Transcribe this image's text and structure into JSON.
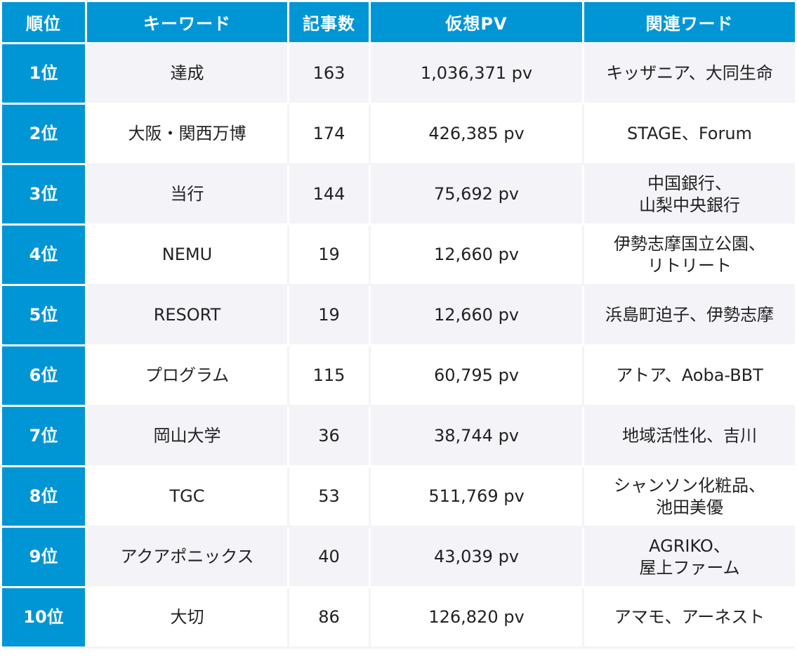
{
  "headers": {
    "rank": "順位",
    "keyword": "キーワード",
    "article_count": "記事数",
    "virtual_pv": "仮想PV",
    "related_words": "関連ワード"
  },
  "rows": [
    {
      "rank": "1位",
      "keyword": "達成",
      "article_count": "163",
      "virtual_pv": "1,036,371 pv",
      "related": [
        "キッザニア、大同生命"
      ]
    },
    {
      "rank": "2位",
      "keyword": "大阪・関西万博",
      "article_count": "174",
      "virtual_pv": "426,385 pv",
      "related": [
        "STAGE、Forum"
      ]
    },
    {
      "rank": "3位",
      "keyword": "当行",
      "article_count": "144",
      "virtual_pv": "75,692 pv",
      "related": [
        "中国銀行、",
        "山梨中央銀行"
      ]
    },
    {
      "rank": "4位",
      "keyword": "NEMU",
      "article_count": "19",
      "virtual_pv": "12,660 pv",
      "related": [
        "伊勢志摩国立公園、",
        "リトリート"
      ]
    },
    {
      "rank": "5位",
      "keyword": "RESORT",
      "article_count": "19",
      "virtual_pv": "12,660 pv",
      "related": [
        "浜島町迫子、伊勢志摩"
      ]
    },
    {
      "rank": "6位",
      "keyword": "プログラム",
      "article_count": "115",
      "virtual_pv": "60,795 pv",
      "related": [
        "アトア、Aoba-BBT"
      ]
    },
    {
      "rank": "7位",
      "keyword": "岡山大学",
      "article_count": "36",
      "virtual_pv": "38,744 pv",
      "related": [
        "地域活性化、吉川"
      ]
    },
    {
      "rank": "8位",
      "keyword": "TGC",
      "article_count": "53",
      "virtual_pv": "511,769 pv",
      "related": [
        "シャンソン化粧品、",
        "池田美優"
      ]
    },
    {
      "rank": "9位",
      "keyword": "アクアポニックス",
      "article_count": "40",
      "virtual_pv": "43,039 pv",
      "related": [
        "AGRIKO、",
        "屋上ファーム"
      ]
    },
    {
      "rank": "10位",
      "keyword": "大切",
      "article_count": "86",
      "virtual_pv": "126,820 pv",
      "related": [
        "アマモ、アーネスト"
      ]
    }
  ],
  "colors": {
    "header_blue": "#0096d6",
    "row_tint": "#f3f3f8",
    "text": "#222222"
  }
}
